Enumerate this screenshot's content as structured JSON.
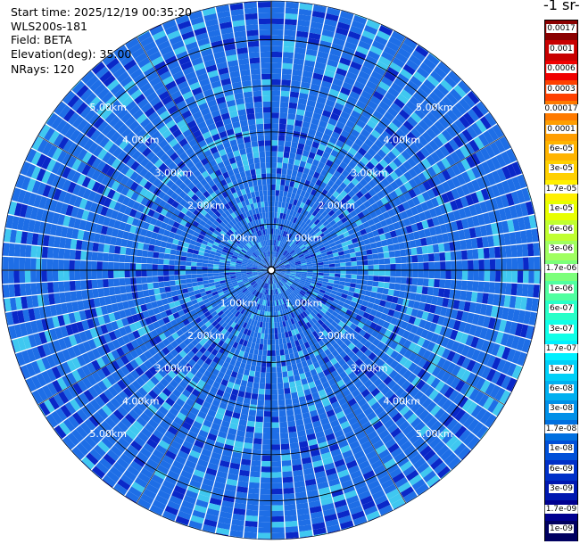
{
  "header": {
    "start_time": "Start time: 2025/12/19 00:35:20",
    "instrument": "WLS200s-181",
    "field": "Field: BETA",
    "elevation": "Elevation(deg): 35.00",
    "nrays": "NRays: 120"
  },
  "chart_data": {
    "type": "heatmap",
    "projection": "polar-ppi",
    "units_label": "-1 sr-",
    "range_rings": [
      {
        "km": 1,
        "label": "1.00km"
      },
      {
        "km": 2,
        "label": "2.00km"
      },
      {
        "km": 3,
        "label": "3.00km"
      },
      {
        "km": 4,
        "label": "4.00km"
      },
      {
        "km": 5,
        "label": "5.00km"
      }
    ],
    "max_range_km": 5.84,
    "n_rays": 120,
    "colorbar": {
      "labels": [
        "0.0017",
        "0.001",
        "0.0006",
        "0.0003",
        "0.00017",
        "0.0001",
        "6e-05",
        "3e-05",
        "1.7e-05",
        "1e-05",
        "6e-06",
        "3e-06",
        "1.7e-06",
        "1e-06",
        "6e-07",
        "3e-07",
        "1.7e-07",
        "1e-07",
        "6e-08",
        "3e-08",
        "1.7e-08",
        "1e-08",
        "6e-09",
        "3e-09",
        "1.7e-09",
        "1e-09"
      ],
      "colors": [
        "#8b0000",
        "#c80000",
        "#f00000",
        "#ff4000",
        "#ff7a00",
        "#ff9e00",
        "#ffb400",
        "#ffd000",
        "#fff000",
        "#e8ff00",
        "#c0ff30",
        "#a0ff60",
        "#7cff7a",
        "#50ffa0",
        "#28ffc8",
        "#10ffe8",
        "#00f0ff",
        "#00d0f8",
        "#00b0f0",
        "#0090e8",
        "#0070e0",
        "#0050d8",
        "#0030c8",
        "#0018b0",
        "#000090",
        "#000060"
      ]
    },
    "field_colors": {
      "dominant": "#1e6ee6",
      "low": "#0a28c8",
      "high": "#3fc8f0"
    }
  }
}
